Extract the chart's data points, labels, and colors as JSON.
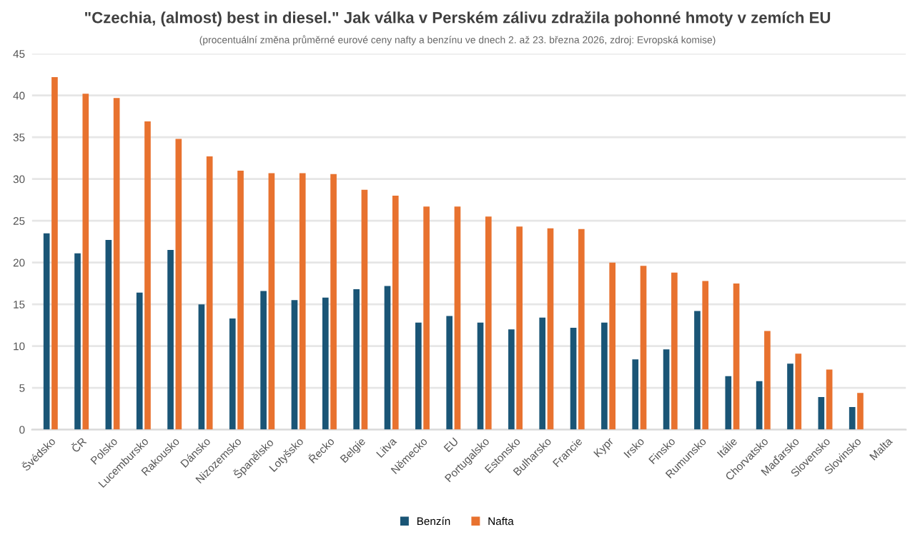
{
  "chart_data": {
    "type": "bar",
    "title": "\"Czechia, (almost) best in diesel.\" Jak válka v Perském zálivu zdražila pohonné hmoty v zemích EU",
    "subtitle": "(procentuální změna průměrné eurové ceny nafty a benzínu ve dnech 2. až 23. března 2026, zdroj: Evropská komise)",
    "categories": [
      "Švédsko",
      "ČR",
      "Polsko",
      "Lucembursko",
      "Rakousko",
      "Dánsko",
      "Nizozemsko",
      "Španělsko",
      "Lotyšsko",
      "Řecko",
      "Belgie",
      "Litva",
      "Německo",
      "EU",
      "Portugalsko",
      "Estonsko",
      "Bulharsko",
      "Francie",
      "Kypr",
      "Irsko",
      "Finsko",
      "Rumunsko",
      "Itálie",
      "Chorvatsko",
      "Maďarsko",
      "Slovensko",
      "Slovinsko",
      "Malta"
    ],
    "series": [
      {
        "name": "Benzín",
        "color": "#1a5576",
        "values": [
          23.5,
          21.1,
          22.7,
          16.4,
          21.5,
          15.0,
          13.3,
          16.6,
          15.5,
          15.8,
          16.8,
          17.2,
          12.8,
          13.6,
          12.8,
          12.0,
          13.4,
          12.2,
          12.8,
          8.4,
          9.6,
          14.2,
          6.4,
          5.8,
          7.9,
          3.9,
          2.7,
          null
        ]
      },
      {
        "name": "Nafta",
        "color": "#e8722f",
        "values": [
          42.2,
          40.2,
          39.7,
          36.9,
          34.8,
          32.7,
          31.0,
          30.7,
          30.7,
          30.6,
          28.7,
          28.0,
          26.7,
          26.7,
          25.5,
          24.3,
          24.1,
          24.0,
          20.0,
          19.6,
          18.8,
          17.8,
          17.5,
          11.8,
          9.1,
          7.2,
          4.4,
          null
        ]
      }
    ],
    "ylim": [
      0,
      45
    ],
    "yticks": [
      0,
      5,
      10,
      15,
      20,
      25,
      30,
      35,
      40,
      45
    ],
    "grid": "y",
    "legend": "bottom"
  }
}
